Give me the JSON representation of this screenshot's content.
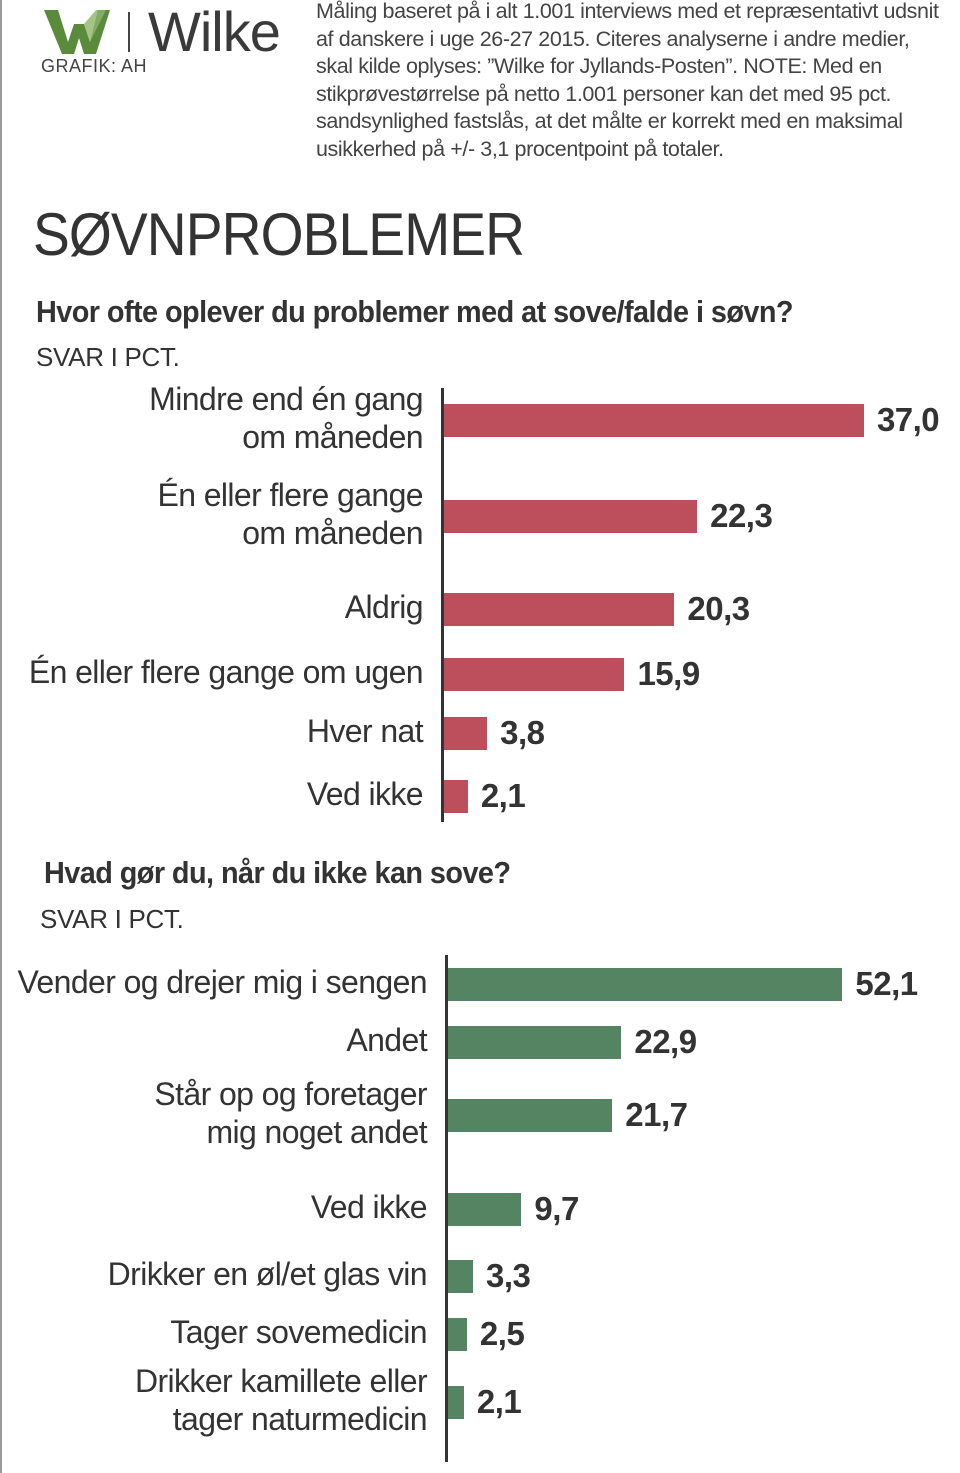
{
  "header": {
    "brand": "Wilke",
    "credit": "GRAFIK: AH",
    "note": "Måling baseret på i alt 1.001 interviews med et repræsentativt udsnit af danskere i uge 26-27 2015. Citeres analyserne i andre medier, skal kilde oplyses: ”Wilke for Jyllands-Posten”. NOTE: Med en stikprøvestørrelse på netto 1.001 personer kan det med 95 pct. sandsynlighed fastslås, at det målte er korrekt med en maksimal usikkerhed på +/- 3,1 procentpoint på totaler."
  },
  "main_title": "SØVNPROBLEMER",
  "colors": {
    "red": "#bd4f5c",
    "green": "#558462",
    "logo_green": "#5a8a3c"
  },
  "chart_data": [
    {
      "type": "bar",
      "orientation": "horizontal",
      "title": "Hvor ofte oplever du problemer med at sove/falde i søvn?",
      "unit_label": "SVAR I PCT.",
      "categories": [
        [
          "Mindre end én gang",
          "om måneden"
        ],
        [
          "Én eller flere gange",
          "om måneden"
        ],
        [
          "Aldrig"
        ],
        [
          "Én eller flere gange om ugen"
        ],
        [
          "Hver nat"
        ],
        [
          "Ved ikke"
        ]
      ],
      "values": [
        37.0,
        22.3,
        20.3,
        15.9,
        3.8,
        2.1
      ],
      "value_labels": [
        "37,0",
        "22,3",
        "20,3",
        "15,9",
        "3,8",
        "2,1"
      ],
      "color": "#bd4f5c"
    },
    {
      "type": "bar",
      "orientation": "horizontal",
      "title": "Hvad gør du, når du ikke kan sove?",
      "unit_label": "SVAR I PCT.",
      "categories": [
        [
          "Vender og drejer mig i sengen"
        ],
        [
          "Andet"
        ],
        [
          "Står op og foretager",
          "mig noget andet"
        ],
        [
          "Ved ikke"
        ],
        [
          "Drikker en øl/et glas vin"
        ],
        [
          "Tager sovemedicin"
        ],
        [
          "Drikker kamillete eller",
          "tager naturmedicin"
        ]
      ],
      "values": [
        52.1,
        22.9,
        21.7,
        9.7,
        3.3,
        2.5,
        2.1
      ],
      "value_labels": [
        "52,1",
        "22,9",
        "21,7",
        "9,7",
        "3,3",
        "2,5",
        "2,1"
      ],
      "color": "#558462"
    }
  ]
}
